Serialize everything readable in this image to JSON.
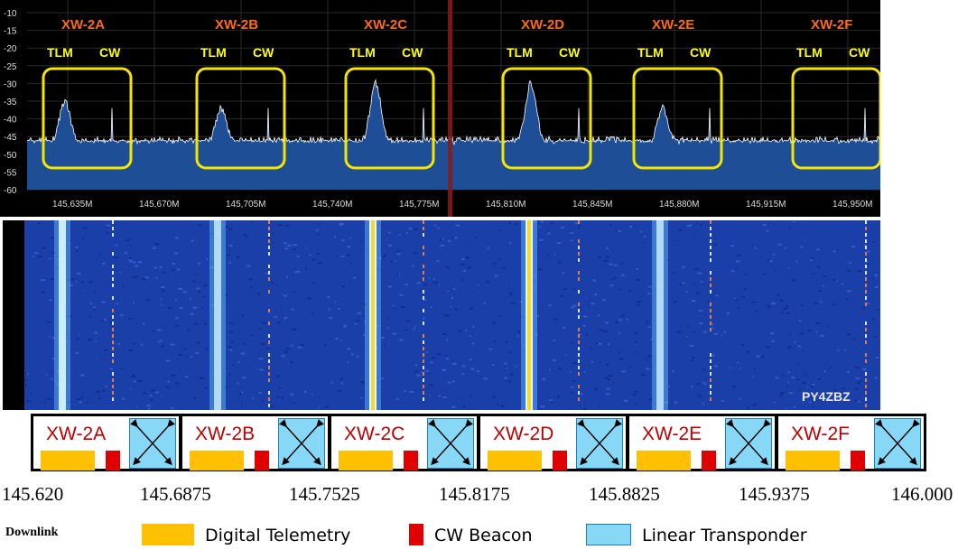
{
  "spectrum": {
    "y_ticks": [
      "-10",
      "-15",
      "-20",
      "-25",
      "-30",
      "-35",
      "-40",
      "-45",
      "-50",
      "-55",
      "-60"
    ],
    "x_ticks": [
      "145,635M",
      "145,670M",
      "145,705M",
      "145,740M",
      "145,775M",
      "145,810M",
      "145,845M",
      "145,880M",
      "145,915M",
      "145,950M"
    ],
    "satellites": [
      {
        "name": "XW-2A",
        "tlm": "TLM",
        "cw": "CW"
      },
      {
        "name": "XW-2B",
        "tlm": "TLM",
        "cw": "CW"
      },
      {
        "name": "XW-2C",
        "tlm": "TLM",
        "cw": "CW"
      },
      {
        "name": "XW-2D",
        "tlm": "TLM",
        "cw": "CW"
      },
      {
        "name": "XW-2E",
        "tlm": "TLM",
        "cw": "CW"
      },
      {
        "name": "XW-2F",
        "tlm": "TLM",
        "cw": "CW"
      }
    ],
    "colors": {
      "label_orange": "#ff6a1a",
      "label_yellow": "#ffff00",
      "highlight_box": "#f5e600",
      "trace": "#ffffff",
      "fill": "#1e4f96",
      "center_line": "#8b1a1a"
    }
  },
  "waterfall": {
    "watermark": "PY4ZBZ"
  },
  "bandplan": {
    "satellites": [
      "XW-2A",
      "XW-2B",
      "XW-2C",
      "XW-2D",
      "XW-2E",
      "XW-2F"
    ],
    "freq_labels": [
      "145.620",
      "145.6875",
      "145.7525",
      "145.8175",
      "145.8825",
      "145.9375",
      "146.000"
    ]
  },
  "legend": {
    "title": "Downlink",
    "items": [
      {
        "label": "Digital Telemetry",
        "color": "#ffc000"
      },
      {
        "label": "CW Beacon",
        "color": "#e00000"
      },
      {
        "label": "Linear Transponder",
        "color": "#87d7f7"
      }
    ]
  }
}
